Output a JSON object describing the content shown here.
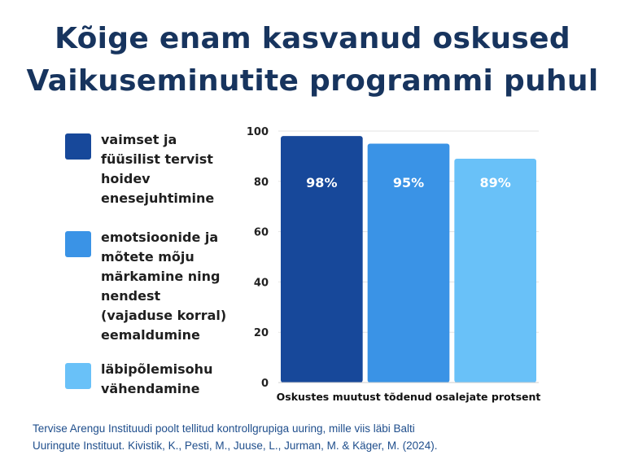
{
  "title": {
    "line1": "Kõige enam kasvanud oskused",
    "line2": "Vaikuseminutite programmi puhul"
  },
  "legend": [
    {
      "label": "vaimset ja\nfüüsilist tervist\nhoidev\nenesejuhtimine",
      "color": "#17489a"
    },
    {
      "label": "emotsioonide ja\nmõtete mõju\nmärkamine ning\nnendest\n(vajaduse korral)\neemaldumine",
      "color": "#3a93e6"
    },
    {
      "label": "läbipõlemisohu\nvähendamine",
      "color": "#69c1f8"
    }
  ],
  "chart_data": {
    "type": "bar",
    "categories": [
      "vaimset ja füüsilist tervist hoidev enesejuhtimine",
      "emotsioonide ja mõtete mõju märkamine ning nendest (vajaduse korral) eemaldumine",
      "läbipõlemisohu vähendamine"
    ],
    "values": [
      98,
      95,
      89
    ],
    "data_labels": [
      "98%",
      "95%",
      "89%"
    ],
    "colors": [
      "#17489a",
      "#3a93e6",
      "#69c1f8"
    ],
    "xlabel": "Oskustes muutust tõdenud osalejate protsent",
    "ylim": [
      0,
      100
    ],
    "yticks": [
      0,
      20,
      40,
      60,
      80,
      100
    ],
    "grid": true,
    "legend_position": "left"
  },
  "caption": {
    "line1": "Tervise Arengu Instituudi poolt tellitud kontrollgrupiga uuring, mille viis läbi Balti",
    "line2": "Uuringute Instituut. Kivistik, K., Pesti, M., Juuse, L., Jurman, M. & Käger, M. (2024)."
  }
}
